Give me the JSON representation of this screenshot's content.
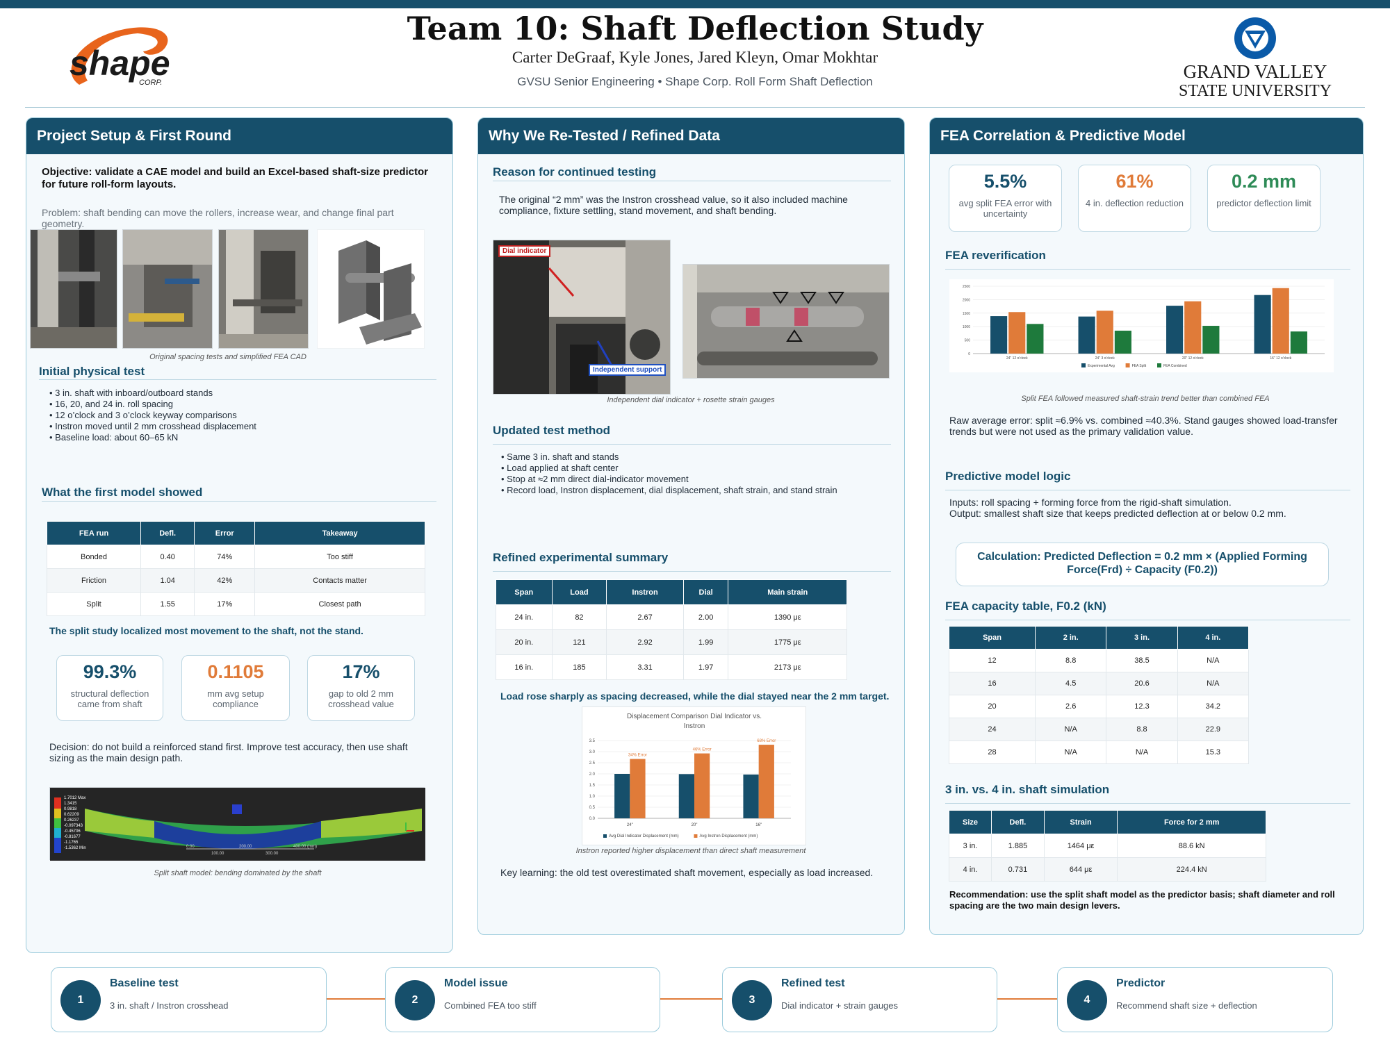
{
  "header": {
    "title": "Team 10: Shaft Deflection Study",
    "authors": "Carter DeGraaf, Kyle Jones, Jared Kleyn, Omar Mokhtar",
    "affiliation": "GVSU Senior Engineering • Shape Corp. Roll Form Shaft Deflection",
    "logo_left_text": "shape",
    "logo_left_sub": "CORP.",
    "logo_right_line1": "GRAND VALLEY",
    "logo_right_line2": "STATE UNIVERSITY"
  },
  "col1": {
    "heading": "Project Setup & First Round",
    "objective": "Objective: validate a CAE model and build an Excel-based shaft-size predictor for future roll-form layouts.",
    "problem": "Problem: shaft bending can move the rollers, increase wear, and change final part geometry.",
    "photo_caption": "Original spacing tests and simplified FEA CAD",
    "initial_heading": "Initial physical test",
    "initial_bullets": [
      "3 in. shaft with inboard/outboard stands",
      "16, 20, and 24 in. roll spacing",
      "12 o’clock and 3 o’clock keyway comparisons",
      "Instron moved until 2 mm crosshead displacement",
      "Baseline load: about 60–65 kN"
    ],
    "model_heading": "What the first model showed",
    "model_table": {
      "headers": [
        "FEA run",
        "Defl.",
        "Error",
        "Takeaway"
      ],
      "rows": [
        [
          "Bonded",
          "0.40",
          "74%",
          "Too stiff"
        ],
        [
          "Friction",
          "1.04",
          "42%",
          "Contacts matter"
        ],
        [
          "Split",
          "1.55",
          "17%",
          "Closest path"
        ]
      ]
    },
    "split_takeaway": "The split study localized most movement to the shaft, not the stand.",
    "metrics": [
      {
        "value": "99.3%",
        "label": "structural deflection came from shaft",
        "color": "#164f6b"
      },
      {
        "value": "0.1105",
        "label": "mm avg setup compliance",
        "color": "#e07b39"
      },
      {
        "value": "17%",
        "label": "gap to old 2 mm crosshead value",
        "color": "#164f6b"
      }
    ],
    "decision": "Decision: do not build a reinforced stand first. Improve test accuracy, then use shaft sizing as the main design path.",
    "fea_legend": [
      "1.7012 Max",
      "1.3415",
      "0.9818",
      "0.62209",
      "0.26237",
      "-0.097343",
      "-0.45706",
      "-0.81677",
      "-1.1765",
      "-1.5362 Min"
    ],
    "fea_axis": [
      "0.00",
      "200.00",
      "400.00 (mm)",
      "100.00",
      "300.00"
    ],
    "fea_caption": "Split shaft model: bending dominated by the shaft"
  },
  "col2": {
    "heading": "Why We Re-Tested / Refined Data",
    "reason_heading": "Reason for continued testing",
    "reason_text": "The original “2 mm” was the Instron crosshead value, so it also included machine compliance, fixture settling, stand movement, and shaft bending.",
    "photo_label_1": "Dial indicator",
    "photo_label_2": "Independent support",
    "photo_caption": "Independent dial indicator + rosette strain gauges",
    "method_heading": "Updated test method",
    "method_bullets": [
      "Same 3 in. shaft and stands",
      "Load applied at shaft center",
      "Stop at ≈2 mm direct dial-indicator movement",
      "Record load, Instron displacement, dial displacement, shaft strain, and stand strain"
    ],
    "summary_heading": "Refined experimental summary",
    "summary_table": {
      "headers": [
        "Span",
        "Load",
        "Instron",
        "Dial",
        "Main strain"
      ],
      "rows": [
        [
          "24 in.",
          "82",
          "2.67",
          "2.00",
          "1390 με"
        ],
        [
          "20 in.",
          "121",
          "2.92",
          "1.99",
          "1775 με"
        ],
        [
          "16 in.",
          "185",
          "3.31",
          "1.97",
          "2173 με"
        ]
      ]
    },
    "load_takeaway": "Load rose sharply as spacing decreased, while the dial stayed near the 2 mm target.",
    "chart_caption": "Instron reported higher displacement than direct shaft measurement",
    "key_learning": "Key learning: the old test overestimated shaft movement, especially as load increased."
  },
  "col3": {
    "heading": "FEA Correlation & Predictive Model",
    "metrics": [
      {
        "value": "5.5%",
        "label": "avg split FEA error with uncertainty",
        "color": "#164f6b"
      },
      {
        "value": "61%",
        "label": "4 in. deflection reduction",
        "color": "#e07b39"
      },
      {
        "value": "0.2 mm",
        "label": "predictor deflection limit",
        "color": "#2e8b57"
      }
    ],
    "reverif_heading": "FEA reverification",
    "reverif_caption": "Split FEA followed measured shaft-strain trend better than combined FEA",
    "raw_error": "Raw average error: split ≈6.9% vs. combined ≈40.3%. Stand gauges showed load-transfer trends but were not used as the primary validation value.",
    "logic_heading": "Predictive model logic",
    "logic_text": "Inputs: roll spacing + forming force from the rigid-shaft simulation.\nOutput: smallest shaft size that keeps predicted deflection at or below 0.2 mm.",
    "calculation": "Calculation: Predicted Deflection = 0.2 mm × (Applied Forming Force(Frd) ÷ Capacity (F0.2))",
    "capacity_heading": "FEA capacity table, F0.2 (kN)",
    "capacity_table": {
      "headers": [
        "Span",
        "2 in.",
        "3 in.",
        "4 in."
      ],
      "rows": [
        [
          "12",
          "8.8",
          "38.5",
          "N/A"
        ],
        [
          "16",
          "4.5",
          "20.6",
          "N/A"
        ],
        [
          "20",
          "2.6",
          "12.3",
          "34.2"
        ],
        [
          "24",
          "N/A",
          "8.8",
          "22.9"
        ],
        [
          "28",
          "N/A",
          "N/A",
          "15.3"
        ]
      ]
    },
    "sim_heading": "3 in. vs. 4 in. shaft simulation",
    "sim_table": {
      "headers": [
        "Size",
        "Defl.",
        "Strain",
        "Force for 2 mm"
      ],
      "rows": [
        [
          "3 in.",
          "1.885",
          "1464 με",
          "88.6 kN"
        ],
        [
          "4 in.",
          "0.731",
          "644 με",
          "224.4 kN"
        ]
      ]
    },
    "recommendation": "Recommendation: use the split shaft model as the predictor basis; shaft diameter and roll spacing are the two main design levers."
  },
  "steps": [
    {
      "num": "1",
      "title": "Baseline test",
      "sub": "3 in. shaft / Instron crosshead"
    },
    {
      "num": "2",
      "title": "Model issue",
      "sub": "Combined FEA too stiff"
    },
    {
      "num": "3",
      "title": "Refined test",
      "sub": "Dial indicator + strain gauges"
    },
    {
      "num": "4",
      "title": "Predictor",
      "sub": "Recommend shaft size + deflection"
    }
  ],
  "colors": {
    "navy": "#164f6b",
    "orange": "#e07b39",
    "green": "#1e7a3c",
    "panel_bg": "#f4f9fc"
  },
  "chart_data": [
    {
      "type": "bar",
      "title": "",
      "categories": [
        "24\" 12 o'clock",
        "24\" 3 o'clock",
        "20\" 12 o'clock",
        "16\" 12 o'clock"
      ],
      "series": [
        {
          "name": "Experimental Avg",
          "values": [
            1390,
            1375,
            1775,
            2173
          ],
          "color": "#164f6b"
        },
        {
          "name": "FEA Split",
          "values": [
            1540,
            1590,
            1940,
            2430
          ],
          "color": "#e07b39"
        },
        {
          "name": "FEA Combined",
          "values": [
            1100,
            850,
            1030,
            820
          ],
          "color": "#1e7a3c"
        }
      ],
      "ylim": [
        0,
        2500
      ],
      "yticks": [
        "0",
        "500",
        "1000",
        "1500",
        "2000",
        "2500"
      ],
      "legend": "bottom",
      "grid": true
    },
    {
      "type": "bar",
      "title": "Displacement Comparison Dial Indicator vs. Instron",
      "categories": [
        "24\"",
        "20\"",
        "16\""
      ],
      "series": [
        {
          "name": "Avg Dial Indicator Displacement  (mm)",
          "values": [
            2.0,
            1.99,
            1.97
          ],
          "color": "#164f6b"
        },
        {
          "name": "Avg Instron Displacement (mm)",
          "values": [
            2.67,
            2.92,
            3.31
          ],
          "color": "#e07b39"
        }
      ],
      "annotations": [
        "34% Error",
        "46% Error",
        "68% Error"
      ],
      "ylim": [
        0,
        3.5
      ],
      "yticks": [
        "0.0",
        "0.5",
        "1.0",
        "1.5",
        "2.0",
        "2.5",
        "3.0",
        "3.5"
      ],
      "legend": "bottom",
      "grid": true
    }
  ]
}
